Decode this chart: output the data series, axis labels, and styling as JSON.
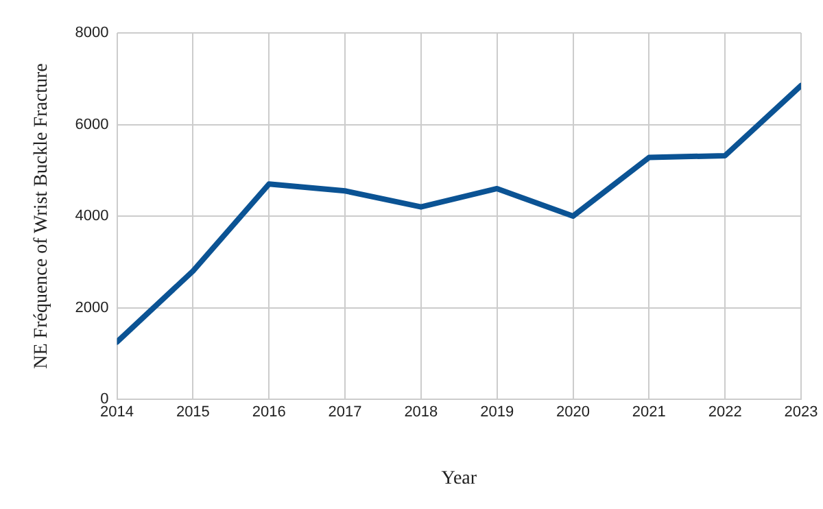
{
  "chart_data": {
    "type": "line",
    "xlabel": "Year",
    "ylabel": "NE Fréquence of Wrist Buckle Fracture",
    "x": [
      2014,
      2015,
      2016,
      2017,
      2018,
      2019,
      2020,
      2021,
      2022,
      2023
    ],
    "series": [
      {
        "color": "#0b5394",
        "values": [
          1250,
          2800,
          4700,
          4550,
          4200,
          4600,
          4000,
          5280,
          5320,
          6850
        ]
      }
    ],
    "xlim": [
      2014,
      2023
    ],
    "xticks": [
      2014,
      2015,
      2016,
      2017,
      2018,
      2019,
      2020,
      2021,
      2022,
      2023
    ],
    "ylim": [
      0,
      8000
    ],
    "yticks": [
      0,
      2000,
      4000,
      6000,
      8000
    ],
    "grid": true,
    "legend": false,
    "marker": "none",
    "line_style": "solid"
  }
}
